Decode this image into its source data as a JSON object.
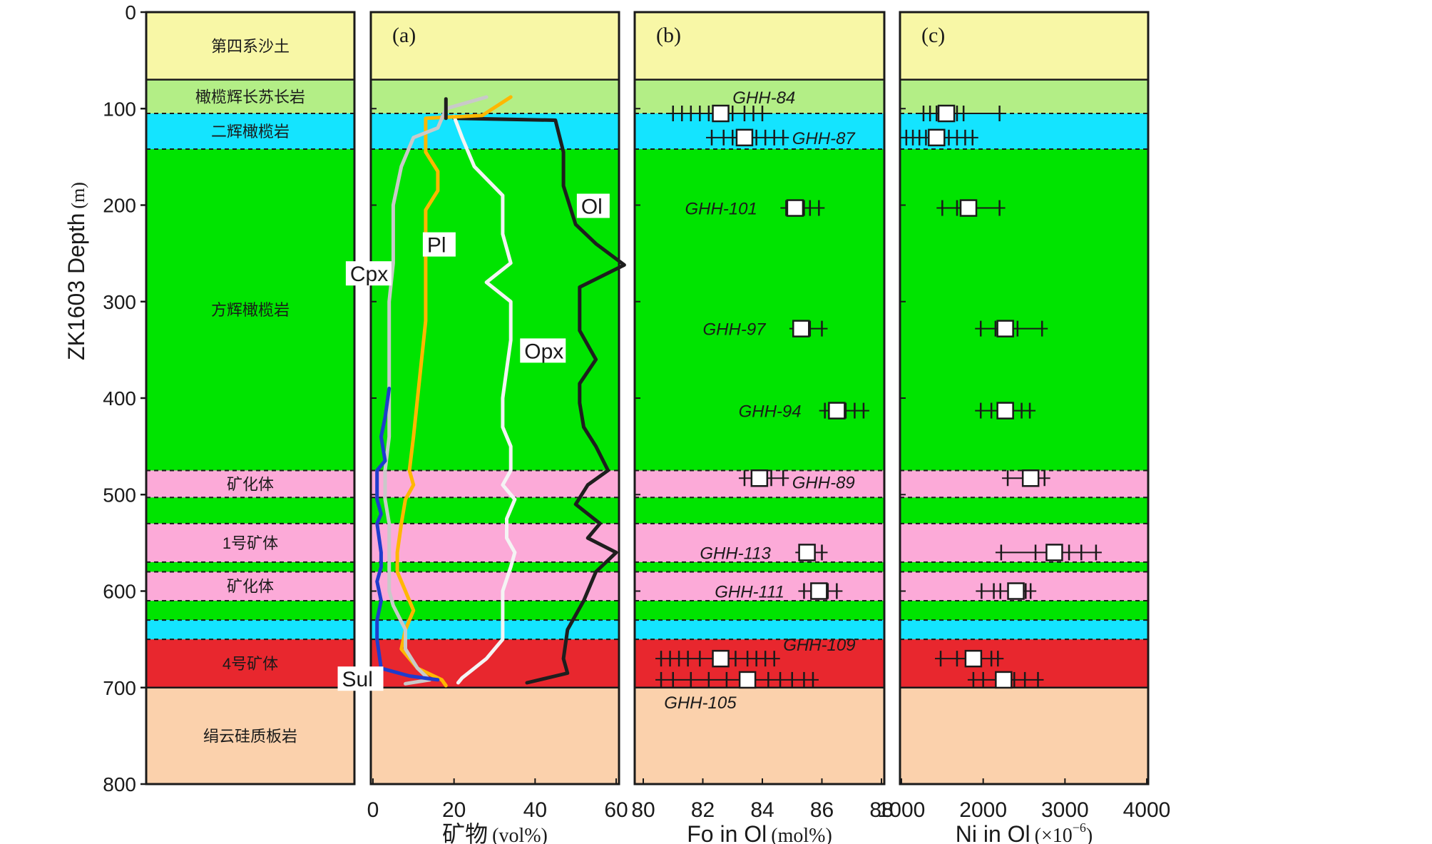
{
  "chart_data": {
    "type": "line",
    "y_axis": {
      "label_main": "ZK1603  Depth",
      "label_unit": "(m)",
      "ticks": [
        0,
        100,
        200,
        300,
        400,
        500,
        600,
        700,
        800
      ],
      "range": [
        0,
        800
      ],
      "reversed": true
    },
    "lithology": [
      {
        "from": 0,
        "to": 70,
        "name": "第四系沙土",
        "color": "#f8f7a6",
        "extends_to_panels": true
      },
      {
        "from": 70,
        "to": 105,
        "name": "橄榄辉长苏长岩",
        "color": "#b3ee86",
        "extends_to_panels": true
      },
      {
        "from": 105,
        "to": 142,
        "name": "二辉橄榄岩",
        "color": "#14e4ff",
        "extends_to_panels": true
      },
      {
        "from": 142,
        "to": 475,
        "name": "方辉橄榄岩",
        "color": "#00e400",
        "extends_to_panels": true
      },
      {
        "from": 475,
        "to": 503,
        "name": "矿化体",
        "color": "#fcaad8",
        "extends_to_panels": true
      },
      {
        "from": 503,
        "to": 530,
        "name": "",
        "color": "#00e400",
        "extends_to_panels": true
      },
      {
        "from": 530,
        "to": 570,
        "name": "1号矿体",
        "color": "#fcaad8",
        "extends_to_panels": true
      },
      {
        "from": 570,
        "to": 580,
        "name": "",
        "color": "#00e400",
        "extends_to_panels": true
      },
      {
        "from": 580,
        "to": 610,
        "name": "矿化体",
        "color": "#fcaad8",
        "extends_to_panels": true
      },
      {
        "from": 610,
        "to": 630,
        "name": "",
        "color": "#00e400",
        "extends_to_panels": true
      },
      {
        "from": 630,
        "to": 650,
        "name": "",
        "color": "#14e4ff",
        "extends_to_panels": true
      },
      {
        "from": 650,
        "to": 700,
        "name": "4号矿体",
        "color": "#e8272e",
        "extends_to_panels": true
      },
      {
        "from": 700,
        "to": 800,
        "name": "绢云硅质板岩",
        "color": "#fbd1ac",
        "extends_to_panels": true
      }
    ],
    "dashed_boundaries": [
      105,
      142,
      475,
      503,
      530,
      570,
      580,
      610,
      630,
      650
    ],
    "panels": [
      {
        "tag": "(a)",
        "xlabel_main": "矿物",
        "xlabel_unit": "(vol%)",
        "xlim": [
          0,
          60
        ],
        "xticks": [
          0,
          20,
          40,
          60
        ],
        "series": [
          {
            "name": "Ol",
            "color": "#1e1e1e",
            "label_at": [
              51,
              200
            ],
            "points": [
              [
                20,
                110
              ],
              [
                45,
                112
              ],
              [
                47,
                145
              ],
              [
                47,
                180
              ],
              [
                50,
                220
              ],
              [
                55,
                240
              ],
              [
                62,
                262
              ],
              [
                51,
                285
              ],
              [
                51,
                330
              ],
              [
                55,
                360
              ],
              [
                51,
                385
              ],
              [
                51,
                405
              ],
              [
                52,
                430
              ],
              [
                55,
                450
              ],
              [
                58,
                475
              ],
              [
                53,
                490
              ],
              [
                50,
                510
              ],
              [
                56,
                530
              ],
              [
                53,
                545
              ],
              [
                60,
                560
              ],
              [
                55,
                580
              ],
              [
                52,
                610
              ],
              [
                48,
                640
              ],
              [
                47,
                670
              ],
              [
                48,
                685
              ],
              [
                38,
                695
              ]
            ]
          },
          {
            "name": "Opx",
            "color": "#f4f4f4",
            "label_at": [
              37,
              350
            ],
            "points": [
              [
                20,
                108
              ],
              [
                22,
                130
              ],
              [
                25,
                160
              ],
              [
                32,
                190
              ],
              [
                32,
                230
              ],
              [
                34,
                260
              ],
              [
                28,
                280
              ],
              [
                34,
                300
              ],
              [
                34,
                340
              ],
              [
                33,
                370
              ],
              [
                32,
                400
              ],
              [
                32,
                430
              ],
              [
                34,
                450
              ],
              [
                34,
                475
              ],
              [
                32,
                490
              ],
              [
                35,
                505
              ],
              [
                33,
                525
              ],
              [
                33,
                545
              ],
              [
                35,
                560
              ],
              [
                34,
                575
              ],
              [
                32,
                600
              ],
              [
                32,
                620
              ],
              [
                32,
                650
              ],
              [
                28,
                670
              ],
              [
                25,
                680
              ],
              [
                22,
                690
              ],
              [
                21,
                695
              ]
            ]
          },
          {
            "name": "Pl",
            "color": "#ffb700",
            "label_at": [
              13,
              240
            ],
            "points": [
              [
                34,
                88
              ],
              [
                27,
                107
              ],
              [
                13,
                110
              ],
              [
                13,
                145
              ],
              [
                16,
                165
              ],
              [
                16,
                185
              ],
              [
                13,
                205
              ],
              [
                13,
                240
              ],
              [
                13,
                280
              ],
              [
                13,
                320
              ],
              [
                12,
                360
              ],
              [
                11,
                400
              ],
              [
                10,
                440
              ],
              [
                9,
                475
              ],
              [
                10,
                490
              ],
              [
                8,
                505
              ],
              [
                7,
                530
              ],
              [
                6,
                560
              ],
              [
                6,
                580
              ],
              [
                8,
                600
              ],
              [
                10,
                620
              ],
              [
                8,
                640
              ],
              [
                7,
                660
              ],
              [
                11,
                680
              ],
              [
                17,
                692
              ],
              [
                18,
                698
              ]
            ]
          },
          {
            "name": "Cpx",
            "color": "#c9c9c9",
            "label_at": [
              -6,
              270
            ],
            "points": [
              [
                28,
                88
              ],
              [
                18,
                100
              ],
              [
                16,
                120
              ],
              [
                10,
                130
              ],
              [
                7,
                160
              ],
              [
                5,
                200
              ],
              [
                5,
                260
              ],
              [
                4,
                300
              ],
              [
                4,
                350
              ],
              [
                4,
                400
              ],
              [
                4,
                440
              ],
              [
                3,
                475
              ],
              [
                3,
                505
              ],
              [
                4,
                530
              ],
              [
                4,
                560
              ],
              [
                4,
                580
              ],
              [
                4,
                600
              ],
              [
                5,
                615
              ],
              [
                8,
                640
              ],
              [
                8,
                660
              ],
              [
                11,
                680
              ],
              [
                14,
                692
              ],
              [
                8,
                696
              ]
            ]
          },
          {
            "name": "Sul",
            "color": "#1f3ccd",
            "label_at": [
              -8,
              690
            ],
            "points": [
              [
                4,
                390
              ],
              [
                3,
                420
              ],
              [
                2,
                440
              ],
              [
                3,
                465
              ],
              [
                1,
                475
              ],
              [
                1,
                505
              ],
              [
                2,
                520
              ],
              [
                1,
                530
              ],
              [
                2,
                560
              ],
              [
                2,
                575
              ],
              [
                1,
                590
              ],
              [
                2,
                610
              ],
              [
                1,
                630
              ],
              [
                1,
                650
              ],
              [
                2,
                680
              ],
              [
                9,
                688
              ],
              [
                16,
                692
              ]
            ]
          },
          {
            "name": "",
            "color": "#1e1e1e",
            "points": [
              [
                18,
                90
              ],
              [
                18,
                110
              ]
            ]
          }
        ]
      },
      {
        "tag": "(b)",
        "xlabel_main": "Fo in Ol",
        "xlabel_unit": "(mol%)",
        "xlim": [
          80,
          88
        ],
        "xticks": [
          80,
          82,
          84,
          86,
          88
        ],
        "samples": [
          {
            "name": "GHH-84",
            "depth": 105,
            "mean": 82.6,
            "crosses": [
              81.0,
              81.3,
              81.6,
              81.9,
              82.2,
              83.0,
              83.4,
              83.7,
              84.0
            ],
            "label_x": 83.0,
            "label_depth": 88
          },
          {
            "name": "GHH-87",
            "depth": 130,
            "mean": 83.4,
            "crosses": [
              82.3,
              82.7,
              83.0,
              83.8,
              84.1,
              84.4,
              84.7
            ],
            "label_x": 85.0,
            "label_depth": 130
          },
          {
            "name": "GHH-101",
            "depth": 203,
            "mean": 85.1,
            "crosses": [
              84.8,
              85.4,
              85.6,
              85.9
            ],
            "label_x": 81.4,
            "label_depth": 203
          },
          {
            "name": "GHH-97",
            "depth": 328,
            "mean": 85.3,
            "crosses": [
              85.1,
              85.6,
              86.0
            ],
            "label_x": 82.0,
            "label_depth": 328
          },
          {
            "name": "GHH-94",
            "depth": 413,
            "mean": 86.5,
            "crosses": [
              86.1,
              86.8,
              87.1,
              87.4
            ],
            "label_x": 83.2,
            "label_depth": 413
          },
          {
            "name": "GHH-89",
            "depth": 483,
            "mean": 83.9,
            "crosses": [
              83.4,
              83.7,
              84.3,
              84.7
            ],
            "label_x": 85.0,
            "label_depth": 487
          },
          {
            "name": "GHH-113",
            "depth": 560,
            "mean": 85.5,
            "crosses": [
              85.3,
              85.7,
              86.0
            ],
            "label_x": 81.9,
            "label_depth": 560
          },
          {
            "name": "GHH-111",
            "depth": 600,
            "mean": 85.9,
            "crosses": [
              85.4,
              85.7,
              86.2,
              86.5
            ],
            "label_x": 82.4,
            "label_depth": 600
          },
          {
            "name": "GHH-109",
            "depth": 670,
            "mean": 82.6,
            "crosses": [
              80.6,
              80.9,
              81.2,
              81.5,
              81.9,
              83.1,
              83.5,
              83.8,
              84.1,
              84.4
            ],
            "label_x": 84.7,
            "label_depth": 655
          },
          {
            "name": "GHH-105",
            "depth": 692,
            "mean": 83.5,
            "crosses": [
              80.6,
              81.0,
              81.6,
              82.2,
              82.8,
              84.2,
              84.6,
              85.0,
              85.4,
              85.7
            ],
            "label_x": 80.7,
            "label_depth": 715
          }
        ]
      },
      {
        "tag": "(c)",
        "xlabel_main": "Ni in Ol",
        "xlabel_unit": "(×10",
        "xlabel_exp": "−6",
        "xlabel_close": ")",
        "xlim": [
          1000,
          4000
        ],
        "xticks": [
          1000,
          2000,
          3000,
          4000
        ],
        "samples": [
          {
            "name": "GHH-84",
            "depth": 105,
            "mean": 1550,
            "crosses": [
              1270,
              1350,
              1430,
              1680,
              1760,
              2200
            ]
          },
          {
            "name": "GHH-87",
            "depth": 130,
            "mean": 1430,
            "crosses": [
              1060,
              1140,
              1220,
              1300,
              1580,
              1680,
              1780,
              1870
            ]
          },
          {
            "name": "GHH-101",
            "depth": 203,
            "mean": 1820,
            "crosses": [
              1500,
              1680,
              2200
            ]
          },
          {
            "name": "GHH-97",
            "depth": 328,
            "mean": 2270,
            "crosses": [
              1970,
              2150,
              2420,
              2720
            ]
          },
          {
            "name": "GHH-94",
            "depth": 413,
            "mean": 2270,
            "crosses": [
              1970,
              2100,
              2470,
              2570
            ]
          },
          {
            "name": "GHH-89",
            "depth": 483,
            "mean": 2580,
            "crosses": [
              2300,
              2750
            ]
          },
          {
            "name": "GHH-113",
            "depth": 560,
            "mean": 2870,
            "crosses": [
              2220,
              2640,
              3050,
              3200,
              3380
            ]
          },
          {
            "name": "GHH-111",
            "depth": 600,
            "mean": 2400,
            "crosses": [
              1980,
              2130,
              2210,
              2520,
              2580
            ]
          },
          {
            "name": "GHH-109",
            "depth": 670,
            "mean": 1880,
            "crosses": [
              1480,
              1680,
              2100,
              2180
            ]
          },
          {
            "name": "GHH-105",
            "depth": 692,
            "mean": 2250,
            "crosses": [
              1880,
              2000,
              2380,
              2510,
              2670
            ]
          }
        ]
      }
    ]
  }
}
